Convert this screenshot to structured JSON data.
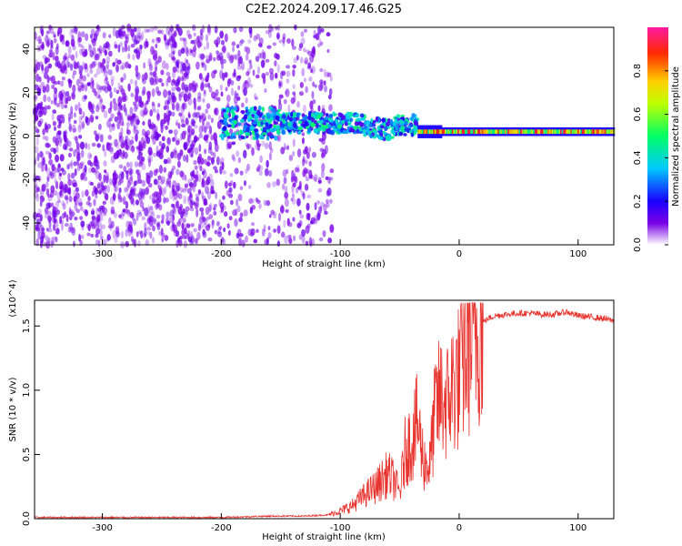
{
  "title": "C2E2.2024.209.17.46.G25",
  "chart_data": [
    {
      "type": "heatmap",
      "title": "C2E2.2024.209.17.46.G25",
      "xlabel": "Height of straight line (km)",
      "ylabel": "Frequency (Hz)",
      "xlim": [
        -357,
        130
      ],
      "ylim": [
        -50,
        50
      ],
      "xticks": [
        -300,
        -200,
        -100,
        0,
        100
      ],
      "yticks": [
        -40,
        -20,
        0,
        20,
        40
      ],
      "colorbar": {
        "label": "Normalized spectral amplitude",
        "range": [
          0,
          1
        ],
        "ticks": [
          "0.0",
          "0.2",
          "0.4",
          "0.6",
          "0.8"
        ],
        "colormap": "white-purple-blue-cyan-green-yellow-red-magenta"
      },
      "regions": [
        {
          "description": "broadband noise",
          "x_range": [
            -357,
            -107
          ],
          "freq_range": [
            -50,
            50
          ],
          "amplitude": [
            0.0,
            0.15
          ]
        },
        {
          "description": "disturbed band",
          "x_range": [
            -200,
            -35
          ],
          "freq_range": [
            -10,
            10
          ],
          "amplitude": [
            0.1,
            0.5
          ]
        },
        {
          "description": "stable carrier",
          "x_range": [
            -35,
            130
          ],
          "freq_center": 2,
          "freq_width": 6,
          "amplitude": [
            0.5,
            1.0
          ]
        }
      ],
      "grid": false
    },
    {
      "type": "line",
      "xlabel": "Height of straight line (km)",
      "ylabel": "SNR (10 * v/v)",
      "y_multiplier": "(x10^4)",
      "xlim": [
        -357,
        130
      ],
      "ylim": [
        0,
        1.7
      ],
      "xticks": [
        -300,
        -200,
        -100,
        0,
        100
      ],
      "yticks": [
        "0.0",
        "0.5",
        "1.0",
        "1.5"
      ],
      "line_color": "#e8342f",
      "series": [
        {
          "x": [
            -357,
            -300,
            -250,
            -200,
            -160,
            -130,
            -110,
            -100,
            -90,
            -80,
            -70,
            -60,
            -55,
            -50,
            -45,
            -40,
            -35,
            -30,
            -25,
            -20,
            -15,
            -10,
            -5,
            0,
            5,
            10,
            15,
            20,
            25,
            30,
            40,
            50,
            60,
            70,
            80,
            90,
            100,
            110,
            120,
            130
          ],
          "values": [
            0.01,
            0.01,
            0.01,
            0.01,
            0.02,
            0.02,
            0.03,
            0.06,
            0.1,
            0.18,
            0.25,
            0.35,
            0.3,
            0.2,
            0.55,
            0.6,
            0.75,
            0.45,
            0.4,
            0.85,
            0.95,
            0.9,
            1.05,
            1.1,
            1.3,
            1.4,
            1.48,
            1.53,
            1.56,
            1.58,
            1.59,
            1.6,
            1.6,
            1.59,
            1.59,
            1.61,
            1.58,
            1.57,
            1.56,
            1.54
          ]
        }
      ],
      "grid": false
    }
  ]
}
